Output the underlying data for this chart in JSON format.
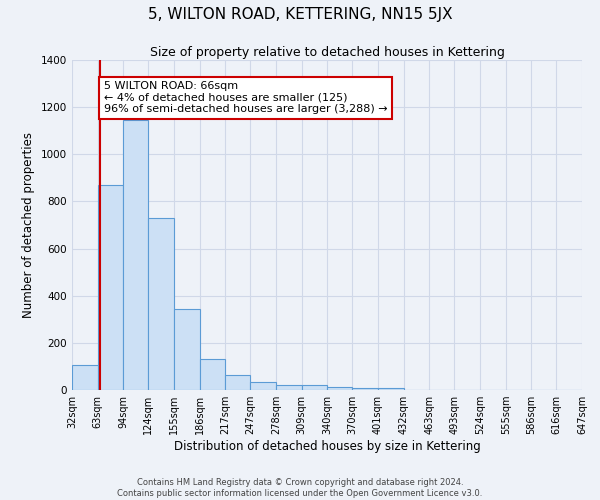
{
  "title": "5, WILTON ROAD, KETTERING, NN15 5JX",
  "subtitle": "Size of property relative to detached houses in Kettering",
  "xlabel": "Distribution of detached houses by size in Kettering",
  "ylabel": "Number of detached properties",
  "bin_edges": [
    32,
    63,
    94,
    124,
    155,
    186,
    217,
    247,
    278,
    309,
    340,
    370,
    401,
    432,
    463,
    493,
    524,
    555,
    586,
    616,
    647
  ],
  "bar_heights": [
    105,
    870,
    1145,
    730,
    345,
    130,
    62,
    35,
    20,
    20,
    12,
    10,
    8,
    0,
    0,
    0,
    0,
    0,
    0,
    0
  ],
  "bar_color": "#cce0f5",
  "bar_edge_color": "#5b9bd5",
  "property_size": 66,
  "annotation_line1": "5 WILTON ROAD: 66sqm",
  "annotation_line2": "← 4% of detached houses are smaller (125)",
  "annotation_line3": "96% of semi-detached houses are larger (3,288) →",
  "annotation_box_color": "#ffffff",
  "annotation_box_edge_color": "#cc0000",
  "vline_color": "#cc0000",
  "ylim": [
    0,
    1400
  ],
  "yticks": [
    0,
    200,
    400,
    600,
    800,
    1000,
    1200,
    1400
  ],
  "grid_color": "#d0d8e8",
  "background_color": "#eef2f8",
  "footer_line1": "Contains HM Land Registry data © Crown copyright and database right 2024.",
  "footer_line2": "Contains public sector information licensed under the Open Government Licence v3.0.",
  "title_fontsize": 11,
  "subtitle_fontsize": 9,
  "tick_label_fontsize": 7,
  "axis_label_fontsize": 8.5
}
